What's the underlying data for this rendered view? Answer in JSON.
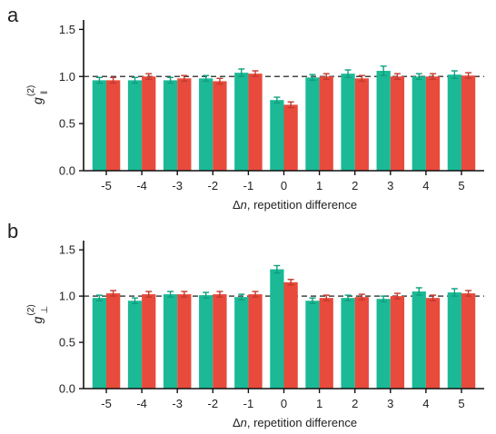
{
  "colors": {
    "series_a": "#1bb996",
    "series_b": "#e84a3c",
    "errorbar_a": "#0f9e7e",
    "errorbar_b": "#c23a2e",
    "reference_line": "#444444",
    "axis": "#111111"
  },
  "chart_data": [
    {
      "type": "bar",
      "panel_label": "a",
      "ylabel": {
        "symbol": "g",
        "superscript": "(2)",
        "subscript": "‖"
      },
      "xlabel": {
        "prefix": "Δ",
        "variable": "n",
        "rest": ", repetition difference"
      },
      "categories": [
        "-5",
        "-4",
        "-3",
        "-2",
        "-1",
        "0",
        "1",
        "2",
        "3",
        "4",
        "5"
      ],
      "ylim": [
        0,
        1.6
      ],
      "yticks": [
        "0.0",
        "0.5",
        "1.0",
        "1.5"
      ],
      "ytick_values": [
        0,
        0.5,
        1.0,
        1.5
      ],
      "reference_line": 1.0,
      "series": [
        {
          "values": [
            0.96,
            0.96,
            0.96,
            0.98,
            1.04,
            0.75,
            0.99,
            1.03,
            1.06,
            1.0,
            1.02
          ],
          "errors": [
            0.03,
            0.03,
            0.03,
            0.03,
            0.04,
            0.03,
            0.03,
            0.04,
            0.05,
            0.03,
            0.04
          ]
        },
        {
          "values": [
            0.96,
            1.0,
            0.98,
            0.95,
            1.03,
            0.7,
            1.0,
            0.98,
            1.0,
            1.0,
            1.01
          ],
          "errors": [
            0.03,
            0.03,
            0.03,
            0.03,
            0.03,
            0.03,
            0.03,
            0.03,
            0.03,
            0.03,
            0.03
          ]
        }
      ]
    },
    {
      "type": "bar",
      "panel_label": "b",
      "ylabel": {
        "symbol": "g",
        "superscript": "(2)",
        "subscript": "⊥"
      },
      "xlabel": {
        "prefix": "Δ",
        "variable": "n",
        "rest": ", repetition difference"
      },
      "categories": [
        "-5",
        "-4",
        "-3",
        "-2",
        "-1",
        "0",
        "1",
        "2",
        "3",
        "4",
        "5"
      ],
      "ylim": [
        0,
        1.6
      ],
      "yticks": [
        "0.0",
        "0.5",
        "1.0",
        "1.5"
      ],
      "ytick_values": [
        0,
        0.5,
        1.0,
        1.5
      ],
      "reference_line": 1.0,
      "series": [
        {
          "values": [
            0.98,
            0.95,
            1.02,
            1.01,
            0.99,
            1.29,
            0.95,
            0.98,
            0.97,
            1.05,
            1.04
          ],
          "errors": [
            0.03,
            0.03,
            0.03,
            0.03,
            0.03,
            0.04,
            0.03,
            0.03,
            0.03,
            0.04,
            0.04
          ]
        },
        {
          "values": [
            1.03,
            1.02,
            1.02,
            1.02,
            1.02,
            1.15,
            0.98,
            0.99,
            1.0,
            0.98,
            1.03
          ],
          "errors": [
            0.03,
            0.03,
            0.03,
            0.03,
            0.03,
            0.03,
            0.03,
            0.03,
            0.03,
            0.03,
            0.03
          ]
        }
      ]
    }
  ]
}
